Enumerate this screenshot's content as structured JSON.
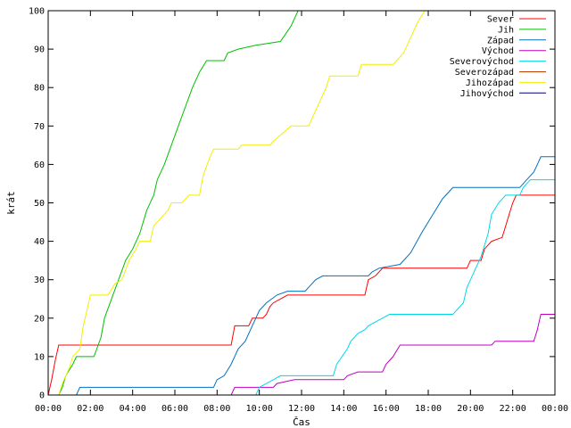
{
  "chart_data": {
    "type": "line",
    "title": "",
    "xlabel": "Čas",
    "ylabel": "krát",
    "xlim": [
      "00:00",
      "24:00"
    ],
    "ylim": [
      0,
      100
    ],
    "x_ticks": [
      "00:00",
      "02:00",
      "04:00",
      "06:00",
      "08:00",
      "10:00",
      "12:00",
      "14:00",
      "16:00",
      "18:00",
      "20:00",
      "22:00",
      "00:00"
    ],
    "y_ticks": [
      0,
      10,
      20,
      30,
      40,
      50,
      60,
      70,
      80,
      90,
      100
    ],
    "grid": false,
    "legend_position": "top-right",
    "line_shape": "step",
    "series": [
      {
        "name": "Sever",
        "color": "#ff0000",
        "points": [
          [
            "00:00",
            0
          ],
          [
            "00:10",
            4
          ],
          [
            "00:20",
            9
          ],
          [
            "00:30",
            13
          ],
          [
            "08:40",
            13
          ],
          [
            "08:50",
            18
          ],
          [
            "09:30",
            18
          ],
          [
            "09:40",
            20
          ],
          [
            "10:10",
            20
          ],
          [
            "10:20",
            21
          ],
          [
            "10:30",
            23
          ],
          [
            "10:40",
            24
          ],
          [
            "11:00",
            25
          ],
          [
            "11:20",
            26
          ],
          [
            "15:00",
            26
          ],
          [
            "15:10",
            30
          ],
          [
            "15:30",
            31
          ],
          [
            "15:50",
            33
          ],
          [
            "19:50",
            33
          ],
          [
            "20:00",
            35
          ],
          [
            "20:30",
            35
          ],
          [
            "20:40",
            38
          ],
          [
            "21:00",
            40
          ],
          [
            "21:30",
            41
          ],
          [
            "21:40",
            44
          ],
          [
            "21:50",
            47
          ],
          [
            "22:00",
            50
          ],
          [
            "22:10",
            52
          ],
          [
            "24:00",
            52
          ]
        ]
      },
      {
        "name": "Jih",
        "color": "#00c000",
        "points": [
          [
            "00:00",
            0
          ],
          [
            "00:30",
            0
          ],
          [
            "00:40",
            2
          ],
          [
            "00:50",
            5
          ],
          [
            "01:10",
            8
          ],
          [
            "01:20",
            10
          ],
          [
            "02:10",
            10
          ],
          [
            "02:30",
            15
          ],
          [
            "02:40",
            20
          ],
          [
            "03:00",
            25
          ],
          [
            "03:20",
            30
          ],
          [
            "03:40",
            35
          ],
          [
            "04:00",
            38
          ],
          [
            "04:20",
            42
          ],
          [
            "04:40",
            48
          ],
          [
            "05:00",
            52
          ],
          [
            "05:10",
            56
          ],
          [
            "05:30",
            60
          ],
          [
            "05:50",
            65
          ],
          [
            "06:10",
            70
          ],
          [
            "06:30",
            75
          ],
          [
            "06:50",
            80
          ],
          [
            "07:10",
            84
          ],
          [
            "07:30",
            87
          ],
          [
            "08:20",
            87
          ],
          [
            "08:30",
            89
          ],
          [
            "09:00",
            90
          ],
          [
            "09:50",
            91
          ],
          [
            "11:00",
            92
          ],
          [
            "11:30",
            96
          ],
          [
            "11:50",
            100
          ]
        ]
      },
      {
        "name": "Západ",
        "color": "#0070c0",
        "points": [
          [
            "00:00",
            0
          ],
          [
            "01:20",
            0
          ],
          [
            "01:30",
            2
          ],
          [
            "07:50",
            2
          ],
          [
            "08:00",
            4
          ],
          [
            "08:20",
            5
          ],
          [
            "08:40",
            8
          ],
          [
            "09:00",
            12
          ],
          [
            "09:20",
            14
          ],
          [
            "09:40",
            18
          ],
          [
            "10:00",
            22
          ],
          [
            "10:20",
            24
          ],
          [
            "10:50",
            26
          ],
          [
            "11:20",
            27
          ],
          [
            "12:10",
            27
          ],
          [
            "12:20",
            28
          ],
          [
            "12:40",
            30
          ],
          [
            "13:00",
            31
          ],
          [
            "15:10",
            31
          ],
          [
            "15:20",
            32
          ],
          [
            "15:40",
            33
          ],
          [
            "16:40",
            34
          ],
          [
            "17:10",
            37
          ],
          [
            "17:40",
            42
          ],
          [
            "18:00",
            45
          ],
          [
            "18:20",
            48
          ],
          [
            "18:40",
            51
          ],
          [
            "19:00",
            53
          ],
          [
            "19:10",
            54
          ],
          [
            "22:20",
            54
          ],
          [
            "22:40",
            56
          ],
          [
            "23:00",
            58
          ],
          [
            "23:10",
            60
          ],
          [
            "23:20",
            62
          ],
          [
            "24:00",
            62
          ]
        ]
      },
      {
        "name": "Východ",
        "color": "#c000c0",
        "points": [
          [
            "00:00",
            0
          ],
          [
            "08:40",
            0
          ],
          [
            "08:50",
            2
          ],
          [
            "10:40",
            2
          ],
          [
            "10:50",
            3
          ],
          [
            "11:40",
            4
          ],
          [
            "14:00",
            4
          ],
          [
            "14:10",
            5
          ],
          [
            "14:40",
            6
          ],
          [
            "15:50",
            6
          ],
          [
            "16:00",
            8
          ],
          [
            "16:20",
            10
          ],
          [
            "16:40",
            13
          ],
          [
            "21:00",
            13
          ],
          [
            "21:10",
            14
          ],
          [
            "23:00",
            14
          ],
          [
            "23:10",
            17
          ],
          [
            "23:20",
            21
          ],
          [
            "24:00",
            21
          ]
        ]
      },
      {
        "name": "Severovýchod",
        "color": "#00d8e8",
        "points": [
          [
            "00:00",
            0
          ],
          [
            "09:50",
            0
          ],
          [
            "10:00",
            2
          ],
          [
            "10:20",
            3
          ],
          [
            "10:40",
            4
          ],
          [
            "11:00",
            5
          ],
          [
            "13:30",
            5
          ],
          [
            "13:40",
            8
          ],
          [
            "14:10",
            12
          ],
          [
            "14:20",
            14
          ],
          [
            "14:40",
            16
          ],
          [
            "15:00",
            17
          ],
          [
            "15:10",
            18
          ],
          [
            "15:30",
            19
          ],
          [
            "16:10",
            21
          ],
          [
            "19:10",
            21
          ],
          [
            "19:40",
            24
          ],
          [
            "19:50",
            28
          ],
          [
            "20:10",
            32
          ],
          [
            "20:30",
            36
          ],
          [
            "20:50",
            42
          ],
          [
            "21:00",
            47
          ],
          [
            "21:20",
            50
          ],
          [
            "21:40",
            52
          ],
          [
            "22:20",
            52
          ],
          [
            "22:30",
            54
          ],
          [
            "22:50",
            56
          ],
          [
            "24:00",
            56
          ]
        ]
      },
      {
        "name": "Severozápad",
        "color": "#c04000",
        "points": [
          [
            "00:00",
            0
          ],
          [
            "24:00",
            0
          ]
        ]
      },
      {
        "name": "Jihozápad",
        "color": "#f0f000",
        "points": [
          [
            "00:00",
            0
          ],
          [
            "00:30",
            0
          ],
          [
            "00:40",
            3
          ],
          [
            "01:00",
            7
          ],
          [
            "01:10",
            10
          ],
          [
            "01:30",
            12
          ],
          [
            "01:40",
            18
          ],
          [
            "01:50",
            22
          ],
          [
            "02:00",
            26
          ],
          [
            "02:50",
            26
          ],
          [
            "03:10",
            29
          ],
          [
            "03:30",
            30
          ],
          [
            "03:50",
            35
          ],
          [
            "04:10",
            38
          ],
          [
            "04:20",
            40
          ],
          [
            "04:50",
            40
          ],
          [
            "05:00",
            44
          ],
          [
            "05:20",
            46
          ],
          [
            "05:40",
            48
          ],
          [
            "05:50",
            50
          ],
          [
            "06:20",
            50
          ],
          [
            "06:40",
            52
          ],
          [
            "07:10",
            52
          ],
          [
            "07:20",
            57
          ],
          [
            "07:40",
            62
          ],
          [
            "07:50",
            64
          ],
          [
            "09:00",
            64
          ],
          [
            "09:10",
            65
          ],
          [
            "10:30",
            65
          ],
          [
            "10:40",
            66
          ],
          [
            "11:30",
            70
          ],
          [
            "12:20",
            70
          ],
          [
            "12:30",
            72
          ],
          [
            "12:50",
            76
          ],
          [
            "13:10",
            80
          ],
          [
            "13:20",
            83
          ],
          [
            "14:40",
            83
          ],
          [
            "14:50",
            86
          ],
          [
            "16:20",
            86
          ],
          [
            "16:30",
            87
          ],
          [
            "16:50",
            89
          ],
          [
            "17:10",
            93
          ],
          [
            "17:30",
            97
          ],
          [
            "17:50",
            100
          ]
        ]
      },
      {
        "name": "Jihovýchod",
        "color": "#000080",
        "points": [
          [
            "00:00",
            0
          ],
          [
            "24:00",
            0
          ]
        ]
      }
    ]
  }
}
